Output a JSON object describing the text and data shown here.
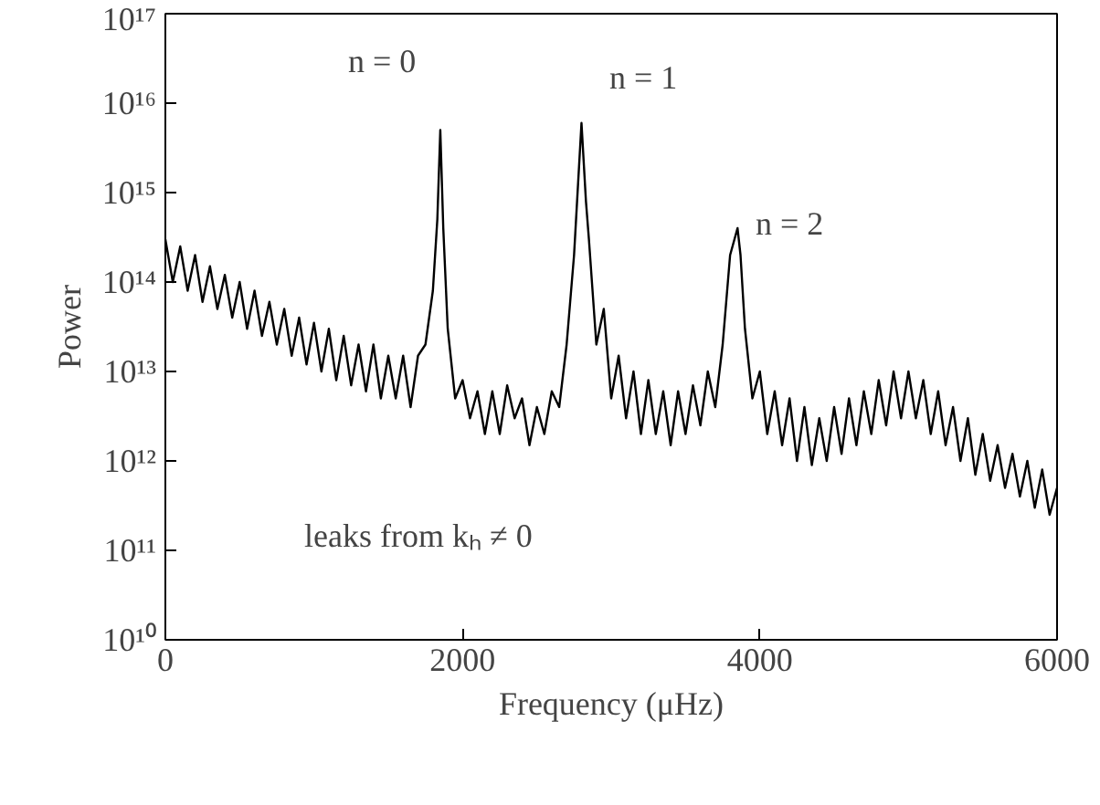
{
  "chart_data": {
    "type": "line",
    "xlabel": "Frequency (μHz)",
    "ylabel": "Power",
    "log": "y",
    "grid": false,
    "marker": "none",
    "line_style": "solid",
    "xlim": [
      0,
      6000
    ],
    "xticks": [
      0,
      2000,
      4000,
      6000
    ],
    "ylim": [
      10000000000.0,
      1e+17
    ],
    "yticks": [
      {
        "value": 10000000000.0,
        "label": "10¹⁰"
      },
      {
        "value": 100000000000.0,
        "label": "10¹¹"
      },
      {
        "value": 1000000000000.0,
        "label": "10¹²"
      },
      {
        "value": 10000000000000.0,
        "label": "10¹³"
      },
      {
        "value": 100000000000000.0,
        "label": "10¹⁴"
      },
      {
        "value": 1000000000000000.0,
        "label": "10¹⁵"
      },
      {
        "value": 1e+16,
        "label": "10¹⁶"
      },
      {
        "value": 1e+17,
        "label": "10¹⁷"
      }
    ],
    "annotations": [
      "n = 0",
      "n = 1",
      "n = 2",
      "leaks from kₕ ≠ 0"
    ],
    "series": [
      {
        "color": "#000000",
        "x": [
          0,
          50,
          100,
          150,
          200,
          250,
          300,
          350,
          400,
          450,
          500,
          550,
          600,
          650,
          700,
          750,
          800,
          850,
          900,
          950,
          1000,
          1050,
          1100,
          1150,
          1200,
          1250,
          1300,
          1350,
          1400,
          1450,
          1500,
          1550,
          1600,
          1650,
          1700,
          1750,
          1800,
          1830,
          1850,
          1870,
          1900,
          1950,
          2000,
          2050,
          2100,
          2150,
          2200,
          2250,
          2300,
          2350,
          2400,
          2450,
          2500,
          2550,
          2600,
          2650,
          2700,
          2750,
          2800,
          2830,
          2850,
          2900,
          2950,
          3000,
          3050,
          3100,
          3150,
          3200,
          3250,
          3300,
          3350,
          3400,
          3450,
          3500,
          3550,
          3600,
          3650,
          3700,
          3750,
          3800,
          3850,
          3870,
          3900,
          3950,
          4000,
          4050,
          4100,
          4150,
          4200,
          4250,
          4300,
          4350,
          4400,
          4450,
          4500,
          4550,
          4600,
          4650,
          4700,
          4750,
          4800,
          4850,
          4900,
          4950,
          5000,
          5050,
          5100,
          5150,
          5200,
          5250,
          5300,
          5350,
          5400,
          5450,
          5500,
          5550,
          5600,
          5650,
          5700,
          5750,
          5800,
          5850,
          5900,
          5950,
          6000
        ],
        "values": [
          300000000000000.0,
          100000000000000.0,
          250000000000000.0,
          80000000000000.0,
          200000000000000.0,
          60000000000000.0,
          150000000000000.0,
          50000000000000.0,
          120000000000000.0,
          40000000000000.0,
          100000000000000.0,
          30000000000000.0,
          80000000000000.0,
          25000000000000.0,
          60000000000000.0,
          20000000000000.0,
          50000000000000.0,
          15000000000000.0,
          40000000000000.0,
          12000000000000.0,
          35000000000000.0,
          10000000000000.0,
          30000000000000.0,
          8000000000000.0,
          25000000000000.0,
          7000000000000.0,
          20000000000000.0,
          6000000000000.0,
          20000000000000.0,
          5000000000000.0,
          15000000000000.0,
          5000000000000.0,
          15000000000000.0,
          4000000000000.0,
          15000000000000.0,
          20000000000000.0,
          80000000000000.0,
          500000000000000.0,
          5000000000000000.0,
          400000000000000.0,
          30000000000000.0,
          5000000000000.0,
          8000000000000.0,
          3000000000000.0,
          6000000000000.0,
          2000000000000.0,
          6000000000000.0,
          2000000000000.0,
          7000000000000.0,
          3000000000000.0,
          5000000000000.0,
          1500000000000.0,
          4000000000000.0,
          2000000000000.0,
          6000000000000.0,
          4000000000000.0,
          20000000000000.0,
          200000000000000.0,
          6000000000000000.0,
          800000000000000.0,
          300000000000000.0,
          20000000000000.0,
          50000000000000.0,
          5000000000000.0,
          15000000000000.0,
          3000000000000.0,
          10000000000000.0,
          2000000000000.0,
          8000000000000.0,
          2000000000000.0,
          6000000000000.0,
          1500000000000.0,
          6000000000000.0,
          2000000000000.0,
          7000000000000.0,
          2500000000000.0,
          10000000000000.0,
          4000000000000.0,
          20000000000000.0,
          200000000000000.0,
          400000000000000.0,
          200000000000000.0,
          30000000000000.0,
          5000000000000.0,
          10000000000000.0,
          2000000000000.0,
          6000000000000.0,
          1500000000000.0,
          5000000000000.0,
          1000000000000.0,
          4000000000000.0,
          900000000000.0,
          3000000000000.0,
          1000000000000.0,
          4000000000000.0,
          1200000000000.0,
          5000000000000.0,
          1500000000000.0,
          6000000000000.0,
          2000000000000.0,
          8000000000000.0,
          2500000000000.0,
          10000000000000.0,
          3000000000000.0,
          10000000000000.0,
          3000000000000.0,
          8000000000000.0,
          2000000000000.0,
          6000000000000.0,
          1500000000000.0,
          4000000000000.0,
          1000000000000.0,
          3000000000000.0,
          700000000000.0,
          2000000000000.0,
          600000000000.0,
          1500000000000.0,
          500000000000.0,
          1200000000000.0,
          400000000000.0,
          1000000000000.0,
          300000000000.0,
          800000000000.0,
          250000000000.0,
          500000000000.0
        ]
      }
    ]
  }
}
